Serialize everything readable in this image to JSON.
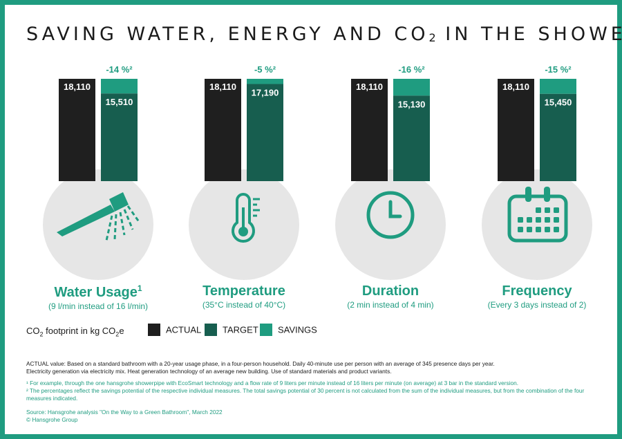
{
  "title": {
    "before": "SAVING WATER, ENERGY AND CO",
    "sub": "2",
    "after": " IN THE SHOWER"
  },
  "colors": {
    "actual": "#1f1f1f",
    "target": "#175e4f",
    "savings": "#1f9c80",
    "accent": "#1f9c80",
    "circle": "#e6e6e6"
  },
  "chart_data": {
    "type": "bar",
    "categories": [
      "Water Usage",
      "Temperature",
      "Duration",
      "Frequency"
    ],
    "series": [
      {
        "name": "ACTUAL",
        "values": [
          18110,
          18110,
          18110,
          18110
        ]
      },
      {
        "name": "TARGET",
        "values": [
          15510,
          17190,
          15130,
          15450
        ]
      },
      {
        "name": "SAVINGS",
        "values": [
          2600,
          920,
          2980,
          2660
        ]
      }
    ],
    "value_labels": {
      "actual": [
        "18,110",
        "18,110",
        "18,110",
        "18,110"
      ],
      "target": [
        "15,510",
        "17,190",
        "15,130",
        "15,450"
      ]
    },
    "percent_labels": [
      "-14 %²",
      "-5 %²",
      "-16 %²",
      "-15 %²"
    ],
    "stacked": true,
    "legend_position": "bottom-left"
  },
  "categories": [
    {
      "title": "Water Usage",
      "sup": "1",
      "subtitle": "(9 l/min instead of 16 l/min)",
      "icon": "shower-head-icon"
    },
    {
      "title": "Temperature",
      "sup": "",
      "subtitle": "(35°C instead of 40°C)",
      "icon": "thermometer-icon"
    },
    {
      "title": "Duration",
      "sup": "",
      "subtitle": "(2 min instead of 4 min)",
      "icon": "clock-icon"
    },
    {
      "title": "Frequency",
      "sup": "",
      "subtitle": "(Every 3 days instead of 2)",
      "icon": "calendar-icon"
    }
  ],
  "legend": {
    "title_before": "CO",
    "title_sub": "2",
    "title_mid": " footprint in kg CO",
    "title_sub2": "2",
    "title_after": "e",
    "items": [
      "ACTUAL",
      "TARGET",
      "SAVINGS"
    ]
  },
  "notes": {
    "actual_line1": "ACTUAL value: Based on a standard bathroom with a 20-year usage phase, in a four-person household. Daily 40-minute use per person with an average of 345 presence days per year.",
    "actual_line2": "Electricity generation via electricity mix. Heat generation technology of an average new building. Use of standard materials and product variants.",
    "footnote1": "¹ For example, through the one hansgrohe showerpipe with EcoSmart technology and a flow rate of 9 liters per minute instead of 16 liters per minute (on average) at 3 bar in the standard version.",
    "footnote2": "² The percentages reflect the savings potential of the respective individual measures. The total savings potential of 30 percent is not calculated from the sum of the individual measures, but from the combination of the four measures indicated."
  },
  "source": {
    "line1": "Source: Hansgrohe analysis \"On the Way to a Green Bathroom\", March 2022",
    "line2": "© Hansgrohe Group"
  }
}
